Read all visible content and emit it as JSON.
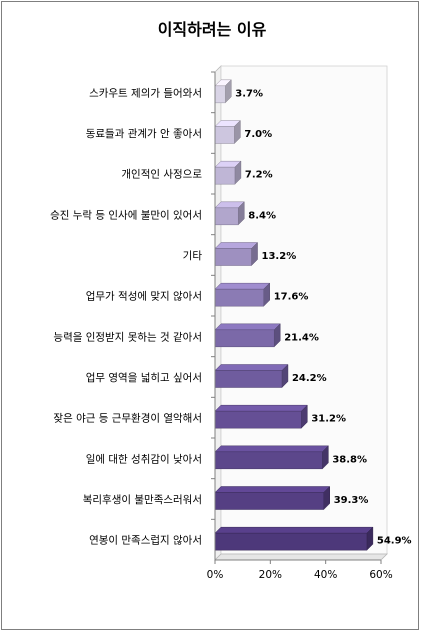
{
  "chart_data": {
    "type": "bar",
    "orientation": "horizontal",
    "title": "이직하려는 이유",
    "xlabel": "",
    "ylabel": "",
    "xlim": [
      0,
      60
    ],
    "ticks": [
      "0%",
      "20%",
      "40%",
      "60%"
    ],
    "tick_values": [
      0,
      20,
      40,
      60
    ],
    "grid": false,
    "categories": [
      "스카우트 제의가 들어와서",
      "동료들과 관계가 안 좋아서",
      "개인적인 사정으로",
      "승진 누락 등 인사에 불만이 있어서",
      "기타",
      "업무가 적성에 맞지 않아서",
      "능력을 인정받지 못하는 것 같아서",
      "업무 영역을 넓히고 싶어서",
      "잦은 야근 등 근무환경이 열악해서",
      "일에 대한 성취감이 낮아서",
      "복리후생이 불만족스러워서",
      "연봉이 만족스럽지 않아서"
    ],
    "values": [
      3.7,
      7.0,
      7.2,
      8.4,
      13.2,
      17.6,
      21.4,
      24.2,
      31.2,
      38.8,
      39.3,
      54.9
    ],
    "value_labels": [
      "3.7%",
      "7.0%",
      "7.2%",
      "8.4%",
      "13.2%",
      "17.6%",
      "21.4%",
      "24.2%",
      "31.2%",
      "38.8%",
      "39.3%",
      "54.9%"
    ],
    "colors": [
      "#d9d4e6",
      "#cdc6df",
      "#bfb6d6",
      "#b1a6cc",
      "#9e90c0",
      "#8b7bb4",
      "#7b69a8",
      "#6f5c9e",
      "#654f95",
      "#5c478b",
      "#553f83",
      "#4d387a"
    ]
  }
}
